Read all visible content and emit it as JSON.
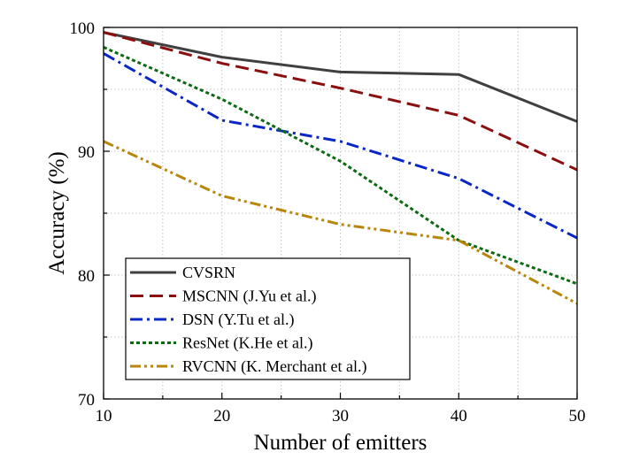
{
  "chart_data": {
    "type": "line",
    "title": "",
    "xlabel": "Number of emitters",
    "ylabel": "Accuracy (%)",
    "x": [
      10,
      20,
      30,
      40,
      50
    ],
    "xlim": [
      10,
      50
    ],
    "ylim": [
      70,
      100
    ],
    "xticks": [
      10,
      20,
      30,
      40,
      50
    ],
    "yticks": [
      70,
      80,
      90,
      100
    ],
    "grid": true,
    "legend_position": "bottom-left",
    "series": [
      {
        "name": "CVSRN",
        "color": "#404040",
        "dash": "solid",
        "values": [
          99.6,
          97.6,
          96.4,
          96.2,
          92.4
        ]
      },
      {
        "name": "MSCNN (J.Yu et al.)",
        "color": "#8b0f0f",
        "dash": "dash",
        "values": [
          99.6,
          97.1,
          95.1,
          92.9,
          88.5
        ]
      },
      {
        "name": "DSN (Y.Tu et al.)",
        "color": "#0a27c6",
        "dash": "dashdot",
        "values": [
          97.9,
          92.5,
          90.8,
          87.8,
          83.0
        ]
      },
      {
        "name": "ResNet (K.He et al.)",
        "color": "#0c6b12",
        "dash": "dot",
        "values": [
          98.4,
          94.2,
          89.2,
          82.8,
          79.3
        ]
      },
      {
        "name": "RVCNN (K. Merchant et al.)",
        "color": "#b8860b",
        "dash": "dashdotdot",
        "values": [
          90.8,
          86.4,
          84.1,
          82.8,
          77.7
        ]
      }
    ]
  }
}
